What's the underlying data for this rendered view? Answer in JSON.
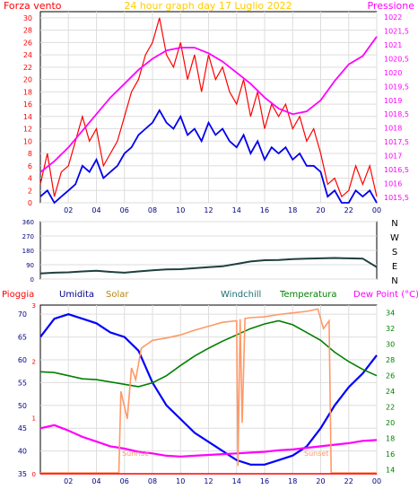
{
  "chart_data": [
    {
      "type": "line",
      "title": "24 hour graph day   17 Luglio 2022",
      "y_left_label": "Forza vento",
      "y_right_label": "Pressione",
      "x_ticks": [
        "02",
        "04",
        "06",
        "08",
        "10",
        "12",
        "14",
        "16",
        "18",
        "20",
        "22",
        "00"
      ],
      "y_left_ticks": [
        "0",
        "2",
        "4",
        "6",
        "8",
        "10",
        "12",
        "14",
        "16",
        "18",
        "20",
        "22",
        "24",
        "26",
        "28",
        "30"
      ],
      "y_right_ticks": [
        "1015,5",
        "1016",
        "1016,5",
        "1017",
        "1017,5",
        "1018",
        "1018,5",
        "1019",
        "1019,5",
        "1020",
        "1020,5",
        "1021",
        "1021,5",
        "1022"
      ],
      "ylim_left": [
        0,
        31
      ],
      "ylim_right": [
        1015.3,
        1022.2
      ],
      "series": [
        {
          "key": "gust",
          "color": "#ff0000",
          "axis": "left",
          "x": [
            0,
            0.5,
            1,
            1.5,
            2,
            2.5,
            3,
            3.5,
            4,
            4.5,
            5,
            5.5,
            6,
            6.5,
            7,
            7.5,
            8,
            8.5,
            9,
            9.5,
            10,
            10.5,
            11,
            11.5,
            12,
            12.5,
            13,
            13.5,
            14,
            14.5,
            15,
            15.5,
            16,
            16.5,
            17,
            17.5,
            18,
            18.5,
            19,
            19.5,
            20,
            20.5,
            21,
            21.5,
            22,
            22.5,
            23,
            23.5,
            24
          ],
          "y": [
            3,
            8,
            1,
            5,
            6,
            10,
            14,
            10,
            12,
            6,
            8,
            10,
            14,
            18,
            20,
            24,
            26,
            30,
            24,
            22,
            26,
            20,
            24,
            18,
            24,
            20,
            22,
            18,
            16,
            20,
            14,
            18,
            12,
            16,
            14,
            16,
            12,
            14,
            10,
            12,
            8,
            3,
            4,
            1,
            2,
            6,
            3,
            6,
            1
          ]
        },
        {
          "key": "wind",
          "color": "#0000ee",
          "axis": "left",
          "x": [
            0,
            0.5,
            1,
            1.5,
            2,
            2.5,
            3,
            3.5,
            4,
            4.5,
            5,
            5.5,
            6,
            6.5,
            7,
            7.5,
            8,
            8.5,
            9,
            9.5,
            10,
            10.5,
            11,
            11.5,
            12,
            12.5,
            13,
            13.5,
            14,
            14.5,
            15,
            15.5,
            16,
            16.5,
            17,
            17.5,
            18,
            18.5,
            19,
            19.5,
            20,
            20.5,
            21,
            21.5,
            22,
            22.5,
            23,
            23.5,
            24
          ],
          "y": [
            1,
            2,
            0,
            1,
            2,
            3,
            6,
            5,
            7,
            4,
            5,
            6,
            8,
            9,
            11,
            12,
            13,
            15,
            13,
            12,
            14,
            11,
            12,
            10,
            13,
            11,
            12,
            10,
            9,
            11,
            8,
            10,
            7,
            9,
            8,
            9,
            7,
            8,
            6,
            6,
            5,
            1,
            2,
            0,
            0,
            2,
            1,
            2,
            0
          ]
        },
        {
          "key": "pressure",
          "color": "#ff00ff",
          "axis": "right",
          "x": [
            0,
            1,
            2,
            3,
            4,
            5,
            6,
            7,
            8,
            9,
            10,
            11,
            12,
            13,
            14,
            15,
            16,
            17,
            18,
            19,
            20,
            21,
            22,
            23,
            24
          ],
          "y": [
            1016.4,
            1016.8,
            1017.3,
            1017.9,
            1018.5,
            1019.1,
            1019.6,
            1020.1,
            1020.5,
            1020.8,
            1020.9,
            1020.9,
            1020.7,
            1020.4,
            1020.0,
            1019.6,
            1019.1,
            1018.7,
            1018.5,
            1018.6,
            1019.0,
            1019.7,
            1020.3,
            1020.6,
            1021.3
          ]
        }
      ]
    },
    {
      "type": "line",
      "y_right_letters": [
        "N",
        "W",
        "S",
        "E",
        "N"
      ],
      "y_ticks": [
        "360",
        "270",
        "180",
        "90",
        "0"
      ],
      "ylim": [
        0,
        360
      ],
      "series": [
        {
          "key": "direction",
          "color": "#1f3f3f",
          "x": [
            0,
            1,
            2,
            3,
            4,
            5,
            6,
            7,
            8,
            9,
            10,
            11,
            12,
            13,
            14,
            15,
            16,
            17,
            18,
            19,
            20,
            21,
            22,
            23,
            24
          ],
          "y": [
            35,
            40,
            42,
            48,
            52,
            45,
            40,
            48,
            55,
            60,
            62,
            68,
            75,
            80,
            95,
            110,
            118,
            120,
            125,
            128,
            130,
            132,
            130,
            128,
            75
          ]
        }
      ]
    },
    {
      "type": "line",
      "legend": [
        "Pioggia",
        "Umidita",
        "Solar",
        "Windchill",
        "Temperatura",
        "Dew Point (°C)"
      ],
      "legend_colors": [
        "#ff0000",
        "#00008b",
        "#b8860b",
        "#1f6f6f",
        "#008000",
        "#ff00ff"
      ],
      "y_left_ticks": [
        "35",
        "40",
        "45",
        "50",
        "55",
        "60",
        "65",
        "70"
      ],
      "y_right_ticks": [
        "14",
        "16",
        "18",
        "20",
        "22",
        "24",
        "26",
        "28",
        "30",
        "32",
        "34"
      ],
      "ylim_left": [
        35,
        72
      ],
      "ylim_right": [
        13.5,
        35
      ],
      "rain_ticks": [
        "0",
        "1",
        "2",
        "3"
      ],
      "annotations": [
        "Sunrise",
        "Sunset"
      ],
      "sunrise_hour": 5.7,
      "sunset_hour": 20.7,
      "series": [
        {
          "key": "humidity",
          "color": "#0000ff",
          "axis": "left",
          "x": [
            0,
            1,
            2,
            3,
            4,
            5,
            6,
            7,
            8,
            9,
            10,
            11,
            12,
            13,
            14,
            15,
            16,
            17,
            18,
            19,
            20,
            21,
            22,
            23,
            24
          ],
          "y": [
            65,
            69,
            70,
            69,
            68,
            66,
            65,
            62,
            55,
            50,
            47,
            44,
            42,
            40,
            38,
            37,
            37,
            38,
            39,
            41,
            45,
            50,
            54,
            57,
            61
          ]
        },
        {
          "key": "temperature",
          "color": "#008000",
          "axis": "right",
          "x": [
            0,
            1,
            2,
            3,
            4,
            5,
            6,
            7,
            8,
            9,
            10,
            11,
            12,
            13,
            14,
            15,
            16,
            17,
            18,
            19,
            20,
            21,
            22,
            23,
            24
          ],
          "y": [
            26.5,
            26.4,
            26.0,
            25.6,
            25.5,
            25.2,
            24.9,
            24.6,
            25.1,
            26.0,
            27.3,
            28.5,
            29.5,
            30.4,
            31.2,
            32.0,
            32.6,
            33.0,
            32.5,
            31.5,
            30.5,
            29.0,
            27.8,
            26.8,
            26.0
          ]
        },
        {
          "key": "dewpoint",
          "color": "#ff00ff",
          "axis": "right",
          "x": [
            0,
            1,
            2,
            3,
            4,
            5,
            6,
            7,
            8,
            9,
            10,
            11,
            12,
            13,
            14,
            15,
            16,
            17,
            18,
            19,
            20,
            21,
            22,
            23,
            24
          ],
          "y": [
            19.3,
            19.7,
            19.0,
            18.2,
            17.6,
            17.0,
            16.7,
            16.3,
            16.1,
            15.8,
            15.7,
            15.8,
            15.9,
            16.0,
            16.1,
            16.2,
            16.3,
            16.5,
            16.6,
            16.8,
            17.0,
            17.2,
            17.4,
            17.7,
            17.8
          ]
        },
        {
          "key": "solar",
          "color": "#ff9966",
          "axis": "right",
          "x": [
            0,
            5.6,
            5.75,
            6.2,
            6.5,
            6.8,
            7.2,
            8,
            9,
            10,
            11,
            12,
            13,
            14,
            14.1,
            14.25,
            14.4,
            14.6,
            15,
            16,
            17,
            18,
            19,
            19.8,
            20.2,
            20.6,
            20.75,
            21,
            24
          ],
          "y": [
            13.6,
            13.6,
            24,
            20.5,
            27,
            25.5,
            29.5,
            30.5,
            30.8,
            31.2,
            31.8,
            32.3,
            32.8,
            33,
            14.5,
            33.2,
            20,
            33.3,
            33.4,
            33.5,
            33.8,
            34,
            34.2,
            34.5,
            32,
            33,
            13.6,
            13.6,
            13.6
          ]
        },
        {
          "key": "rain",
          "color": "#ff0000",
          "axis": "rain",
          "x": [
            0,
            24
          ],
          "y": [
            0,
            0
          ]
        }
      ]
    }
  ]
}
